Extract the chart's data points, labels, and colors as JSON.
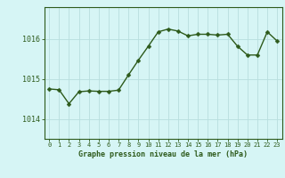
{
  "x": [
    0,
    1,
    2,
    3,
    4,
    5,
    6,
    7,
    8,
    9,
    10,
    11,
    12,
    13,
    14,
    15,
    16,
    17,
    18,
    19,
    20,
    21,
    22,
    23
  ],
  "y": [
    1014.75,
    1014.73,
    1014.38,
    1014.68,
    1014.7,
    1014.69,
    1014.69,
    1014.72,
    1015.1,
    1015.47,
    1015.82,
    1016.18,
    1016.25,
    1016.2,
    1016.08,
    1016.12,
    1016.12,
    1016.1,
    1016.12,
    1015.82,
    1015.6,
    1015.6,
    1016.18,
    1015.95
  ],
  "line_color": "#2d5a1b",
  "marker_color": "#2d5a1b",
  "background_color": "#d6f5f5",
  "grid_color": "#b8dede",
  "axis_line_color": "#2d5a1b",
  "xlabel": "Graphe pression niveau de la mer (hPa)",
  "xlabel_color": "#2d5a1b",
  "tick_color": "#2d5a1b",
  "ylim": [
    1013.5,
    1016.8
  ],
  "yticks": [
    1014,
    1015,
    1016
  ],
  "xticks": [
    0,
    1,
    2,
    3,
    4,
    5,
    6,
    7,
    8,
    9,
    10,
    11,
    12,
    13,
    14,
    15,
    16,
    17,
    18,
    19,
    20,
    21,
    22,
    23
  ],
  "marker_size": 2.5,
  "line_width": 1.0
}
